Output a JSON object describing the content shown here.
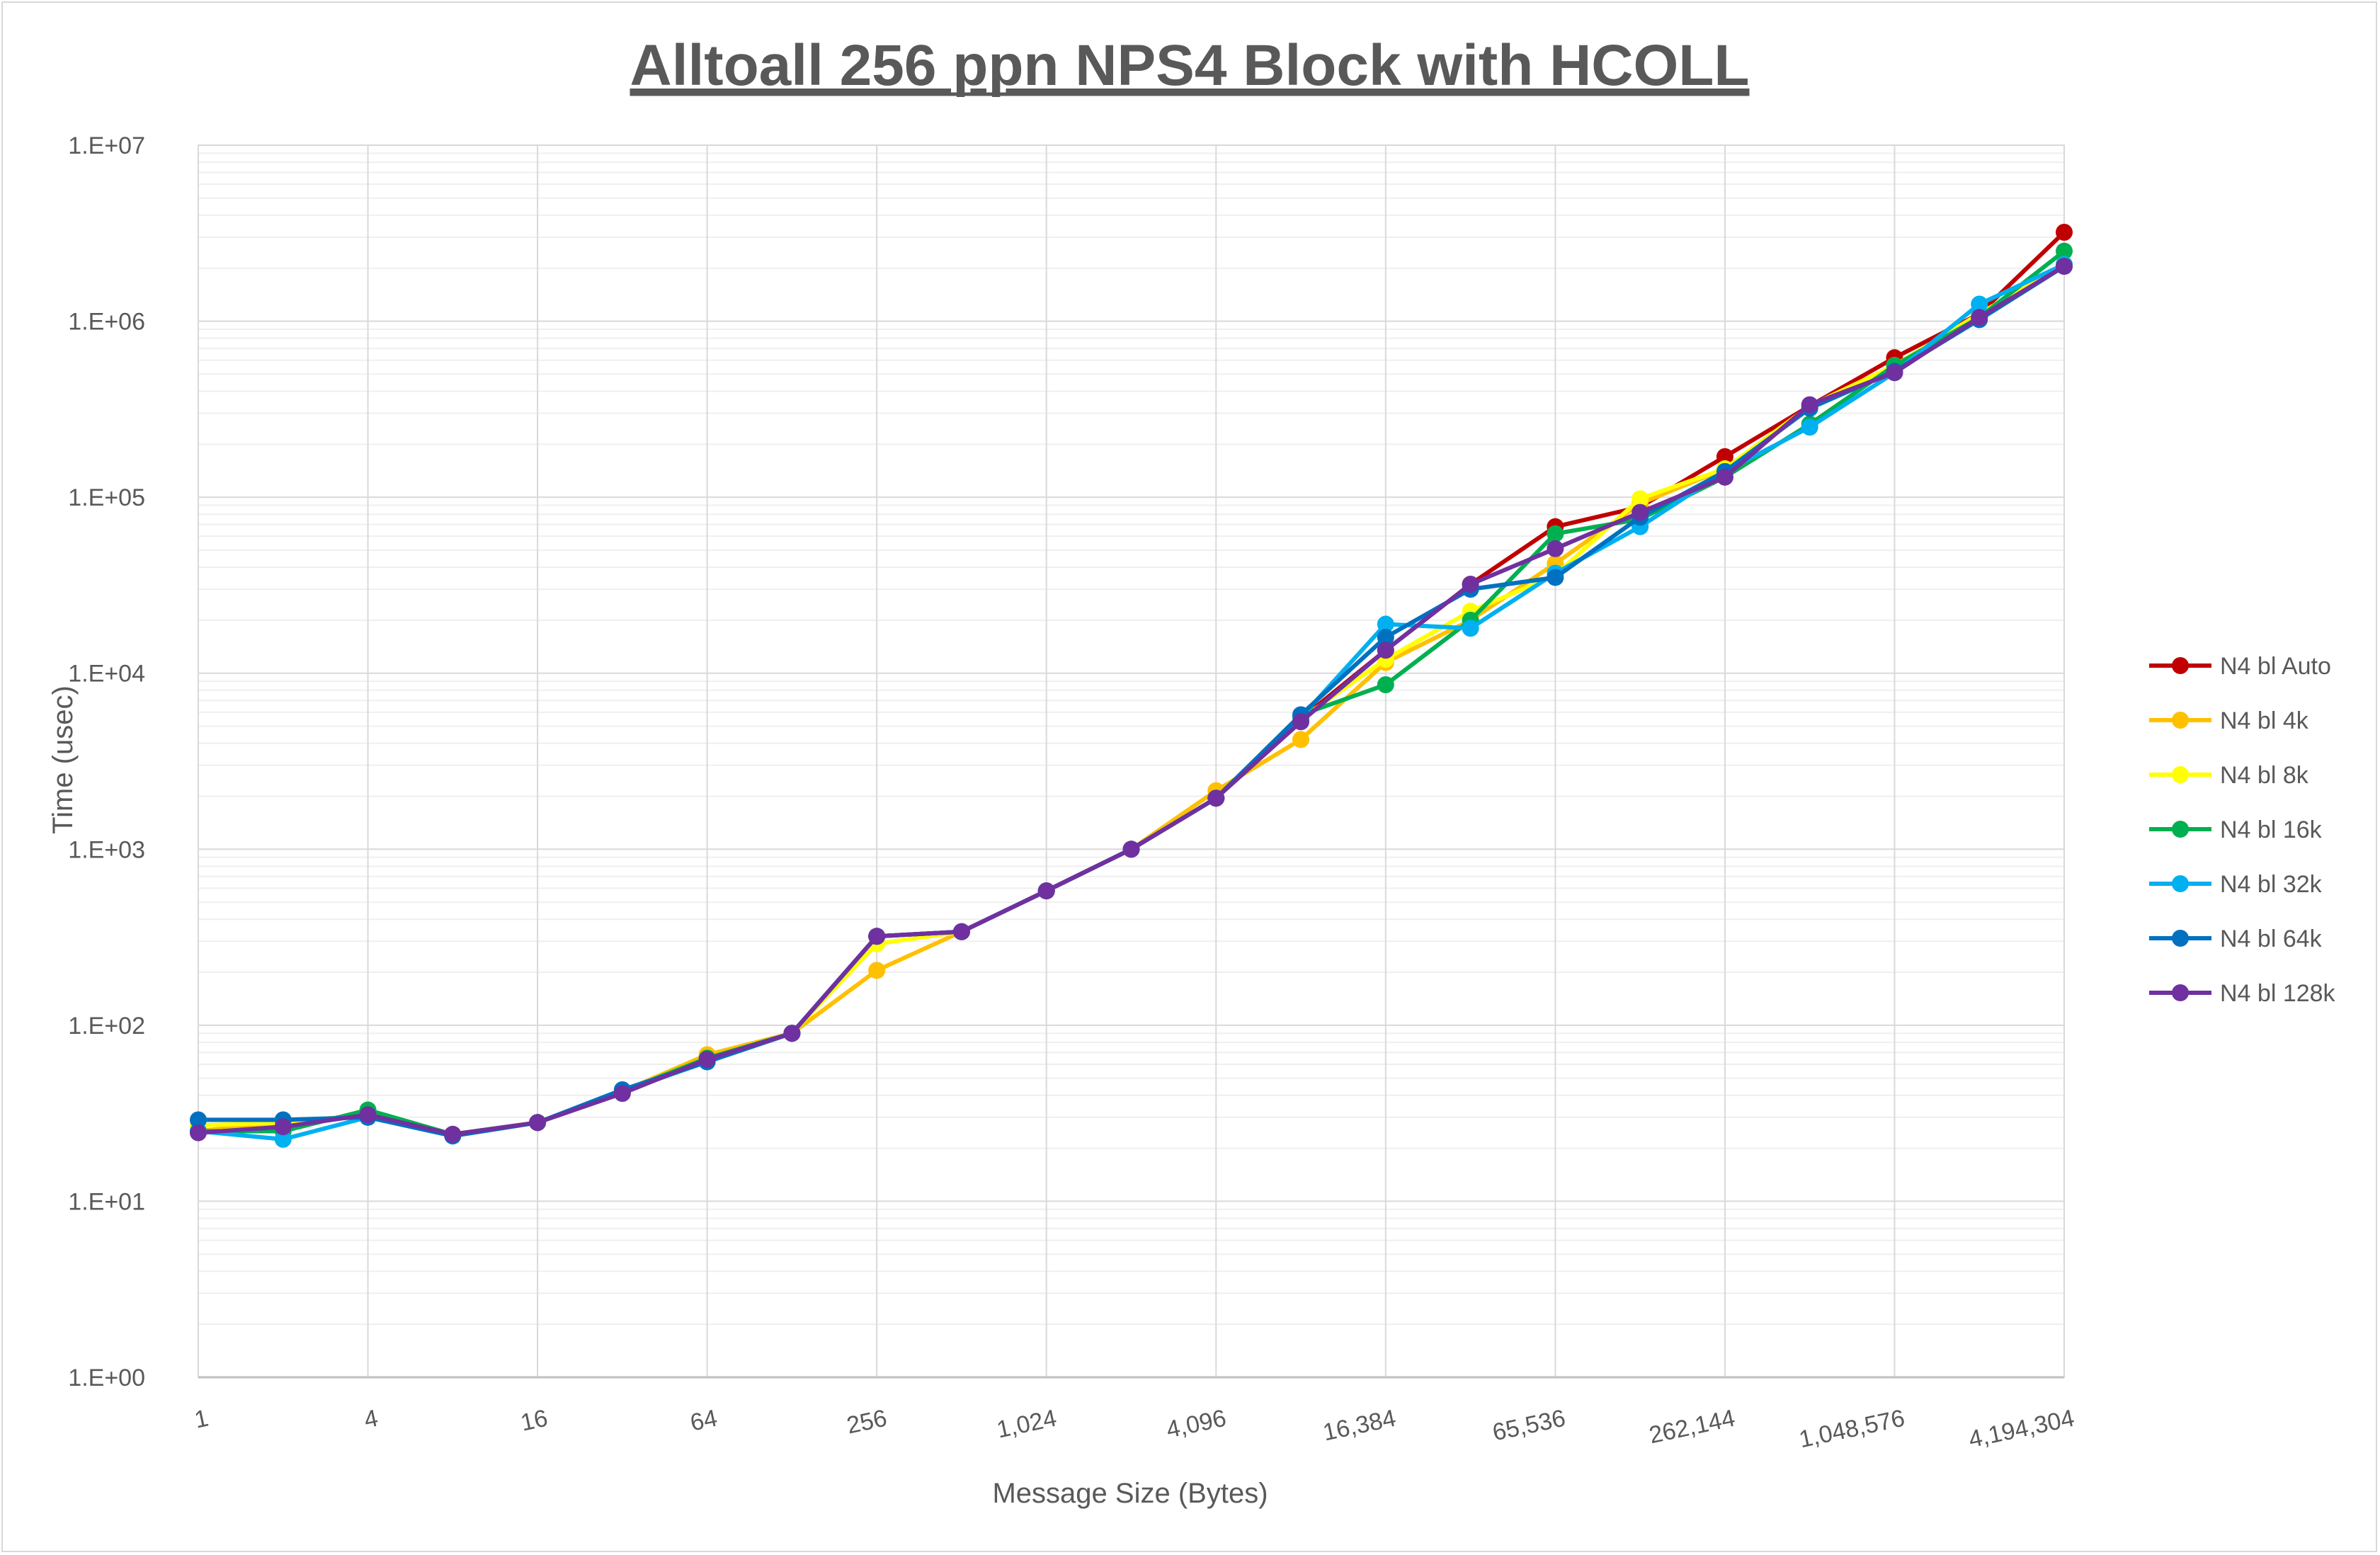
{
  "chart_data": {
    "type": "line",
    "title": "Alltoall 256 ppn NPS4 Block with HCOLL",
    "xlabel": "Message Size (Bytes)",
    "ylabel": "Time (usec)",
    "x_scale": "log2",
    "y_scale": "log10",
    "ylim": [
      1,
      10000000
    ],
    "x": [
      1,
      2,
      4,
      8,
      16,
      32,
      64,
      128,
      256,
      512,
      1024,
      2048,
      4096,
      8192,
      16384,
      32768,
      65536,
      131072,
      262144,
      524288,
      1048576,
      2097152,
      4194304
    ],
    "x_tick_labels": [
      "1",
      "4",
      "16",
      "64",
      "256",
      "1,024",
      "4,096",
      "16,384",
      "65,536",
      "262,144",
      "1,048,576",
      "4,194,304"
    ],
    "y_tick_labels": [
      "1.E+00",
      "1.E+01",
      "1.E+02",
      "1.E+03",
      "1.E+04",
      "1.E+05",
      "1.E+06",
      "1.E+07"
    ],
    "grid": true,
    "legend_position": "right",
    "series": [
      {
        "name": "N4 bl Auto",
        "color": "#c00000",
        "values": [
          25,
          28,
          31,
          24,
          28,
          42,
          65,
          90,
          320,
          340,
          580,
          1000,
          1950,
          5500,
          13500,
          32000,
          68000,
          88000,
          170000,
          330000,
          620000,
          1100000,
          3200000
        ]
      },
      {
        "name": "N4 bl 4k",
        "color": "#ffc000",
        "values": [
          25,
          28,
          31,
          24,
          28,
          42,
          68,
          90,
          205,
          340,
          580,
          1000,
          2150,
          4200,
          11500,
          20000,
          42000,
          92000,
          145000,
          330000,
          560000,
          1100000,
          2100000
        ]
      },
      {
        "name": "N4 bl 8k",
        "color": "#ffff00",
        "values": [
          27,
          28,
          31,
          24,
          28,
          42,
          65,
          90,
          290,
          340,
          580,
          1000,
          1950,
          5500,
          12000,
          22500,
          36000,
          98000,
          145000,
          330000,
          560000,
          1100000,
          2100000
        ]
      },
      {
        "name": "N4 bl 16k",
        "color": "#00b050",
        "values": [
          25,
          25,
          33,
          24,
          28,
          42,
          65,
          90,
          320,
          340,
          580,
          1000,
          1950,
          5800,
          8600,
          20000,
          62000,
          75000,
          130000,
          260000,
          560000,
          1050000,
          2500000
        ]
      },
      {
        "name": "N4 bl 32k",
        "color": "#00b0f0",
        "values": [
          25,
          22.5,
          30,
          23.5,
          28,
          42,
          62,
          90,
          320,
          340,
          580,
          1000,
          1950,
          5600,
          19000,
          18000,
          37000,
          68000,
          140000,
          250000,
          510000,
          1250000,
          2100000
        ]
      },
      {
        "name": "N4 bl 64k",
        "color": "#0070c0",
        "values": [
          29,
          29,
          30,
          23.5,
          28,
          43,
          62,
          90,
          320,
          340,
          580,
          1000,
          1950,
          5800,
          16000,
          30000,
          35000,
          77000,
          140000,
          320000,
          520000,
          1020000,
          2050000
        ]
      },
      {
        "name": "N4 bl 128k",
        "color": "#7030a0",
        "values": [
          24.5,
          26.5,
          31,
          24,
          28,
          41,
          64,
          90,
          320,
          340,
          580,
          1000,
          1950,
          5300,
          13500,
          32000,
          51000,
          82000,
          130000,
          335000,
          510000,
          1050000,
          2050000
        ]
      }
    ]
  }
}
